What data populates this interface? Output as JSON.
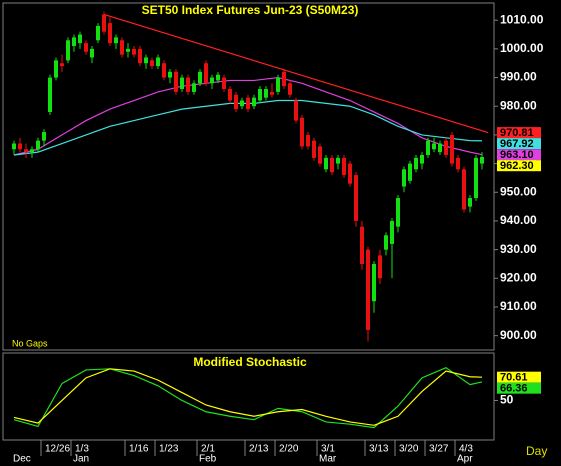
{
  "chart_data": [
    {
      "type": "candlestick",
      "title": "SET50 Index Futures Jun-23 (S50M23)",
      "annotation": "No Gaps",
      "categories": [
        null,
        null,
        null,
        null,
        null,
        "12/26",
        null,
        null,
        null,
        null,
        "1/3",
        null,
        null,
        null,
        null,
        null,
        null,
        null,
        null,
        "1/16",
        null,
        null,
        null,
        null,
        "1/23",
        null,
        null,
        null,
        null,
        null,
        null,
        "2/1",
        null,
        null,
        null,
        null,
        null,
        null,
        null,
        "2/13",
        null,
        null,
        null,
        null,
        "2/20",
        null,
        null,
        null,
        null,
        null,
        null,
        "3/1",
        null,
        null,
        null,
        null,
        null,
        null,
        null,
        "3/13",
        null,
        null,
        null,
        null,
        "3/20",
        null,
        null,
        null,
        null,
        "3/27",
        null,
        null,
        null,
        null,
        "4/3",
        null,
        null,
        null,
        null
      ],
      "months": [
        {
          "value": 0,
          "label": "Dec"
        },
        {
          "value": 10,
          "label": "Jan"
        },
        {
          "value": 31,
          "label": "Feb"
        },
        {
          "value": 51,
          "label": "Mar"
        },
        {
          "value": 74,
          "label": "Apr"
        }
      ],
      "open": [
        965,
        967,
        965,
        964,
        965,
        968,
        978,
        990,
        995,
        996,
        1001,
        1002,
        1002,
        997,
        1003,
        1012,
        1009,
        1002,
        1003,
        999,
        1000,
        1000,
        995,
        996,
        994,
        995,
        990,
        992,
        986,
        990,
        985,
        988,
        995,
        988,
        989,
        990,
        986,
        984,
        980,
        983,
        980,
        982,
        983,
        985,
        985,
        992,
        988,
        982,
        976,
        970,
        968,
        966,
        958,
        962,
        960,
        962,
        960,
        956,
        938,
        930,
        912,
        928,
        930,
        932,
        938,
        952,
        954,
        958,
        960,
        963,
        965,
        964,
        968,
        970,
        962,
        958,
        945,
        948,
        960
      ],
      "high": [
        968,
        969,
        967,
        966,
        969,
        972,
        991,
        997,
        998,
        1004,
        1005,
        1006,
        1003,
        1001,
        1009,
        1013,
        1011,
        1005,
        1004,
        1002,
        1001,
        1001,
        998,
        997,
        998,
        996,
        993,
        993,
        991,
        991,
        989,
        993,
        996,
        991,
        992,
        991,
        987,
        985,
        983,
        984,
        984,
        987,
        987,
        988,
        991,
        993,
        989,
        983,
        977,
        971,
        969,
        967,
        963,
        963,
        963,
        963,
        961,
        957,
        940,
        931,
        926,
        930,
        936,
        941,
        949,
        959,
        961,
        963,
        964,
        969,
        969,
        968,
        969,
        971,
        963,
        959,
        949,
        963,
        964
      ],
      "low": [
        963,
        964,
        962,
        962,
        964,
        966,
        977,
        989,
        992,
        995,
        999,
        1000,
        998,
        995,
        1002,
        1005,
        1001,
        1000,
        997,
        997,
        997,
        994,
        993,
        993,
        993,
        989,
        988,
        984,
        985,
        984,
        984,
        987,
        987,
        986,
        988,
        985,
        981,
        978,
        979,
        978,
        979,
        981,
        982,
        983,
        984,
        986,
        983,
        974,
        965,
        965,
        961,
        959,
        957,
        956,
        958,
        955,
        952,
        938,
        923,
        898,
        908,
        918,
        928,
        920,
        936,
        950,
        953,
        957,
        958,
        962,
        964,
        963,
        962,
        959,
        957,
        943,
        943,
        947,
        958
      ],
      "close": [
        967,
        965,
        964,
        965,
        968,
        971,
        990,
        996,
        994,
        1003,
        1004,
        1005,
        999,
        1000,
        1008,
        1006,
        1002,
        1004,
        998,
        1000,
        998,
        995,
        997,
        994,
        997,
        990,
        992,
        985,
        990,
        985,
        988,
        992,
        988,
        990,
        991,
        986,
        982,
        979,
        982,
        979,
        983,
        986,
        986,
        984,
        990,
        987,
        984,
        975,
        966,
        966,
        962,
        960,
        962,
        957,
        962,
        956,
        953,
        940,
        925,
        902,
        925,
        920,
        935,
        940,
        948,
        958,
        960,
        962,
        963,
        968,
        967,
        967,
        963,
        960,
        958,
        944,
        948,
        962,
        962.3
      ],
      "value_labels": [
        null,
        null,
        null,
        null,
        null,
        null,
        null,
        null,
        null,
        null,
        null,
        null,
        null,
        null,
        null,
        null,
        null,
        null,
        null,
        null,
        null,
        null,
        null,
        null,
        null,
        null,
        null,
        null,
        null,
        null,
        null,
        null,
        null,
        null,
        null,
        null,
        null,
        null,
        null,
        null,
        null,
        null,
        null,
        null,
        null,
        null,
        null,
        null,
        null,
        null,
        null,
        null,
        null,
        null,
        null,
        null,
        null,
        null,
        null,
        null,
        null,
        null,
        null,
        null,
        null,
        null,
        null,
        null,
        null,
        null,
        null,
        null,
        null,
        null,
        null,
        null,
        null,
        null,
        "962.30"
      ],
      "label_color": "#ffff00",
      "up_color": "#12e012",
      "down_color": "#e81010",
      "ylim": [
        895,
        1016
      ],
      "yticks": [
        {
          "value": 900,
          "label": "900.00"
        },
        {
          "value": 910,
          "label": "910.00"
        },
        {
          "value": 920,
          "label": "920.00"
        },
        {
          "value": 930,
          "label": "930.00"
        },
        {
          "value": 940,
          "label": "940.00"
        },
        {
          "value": 950,
          "label": "950.00"
        },
        {
          "value": 960,
          "label": "960.00"
        },
        {
          "value": 970,
          "label": "970.00"
        },
        {
          "value": 980,
          "label": "980.00"
        },
        {
          "value": 990,
          "label": "990.00"
        },
        {
          "value": 1000,
          "label": "1000.00"
        },
        {
          "value": 1010,
          "label": "1010.00"
        }
      ],
      "series": [
        {
          "color": "#e040e0",
          "x": [
            0,
            4,
            8,
            12,
            16,
            20,
            24,
            28,
            32,
            36,
            40,
            44,
            48,
            52,
            56,
            60,
            64,
            68,
            72,
            76,
            78
          ],
          "values": [
            963,
            965,
            970,
            975,
            979,
            982,
            985,
            987,
            988,
            989,
            989,
            990,
            988,
            985,
            982,
            978,
            974,
            969,
            966,
            964,
            963.1
          ],
          "value_labels": [
            null,
            null,
            null,
            null,
            null,
            null,
            null,
            null,
            null,
            null,
            null,
            null,
            null,
            null,
            null,
            null,
            null,
            null,
            null,
            null,
            "963.10"
          ]
        },
        {
          "color": "#40e0e0",
          "x": [
            0,
            4,
            8,
            12,
            16,
            20,
            24,
            28,
            32,
            36,
            40,
            44,
            48,
            52,
            56,
            60,
            64,
            68,
            72,
            76,
            78
          ],
          "values": [
            963,
            964,
            967,
            970,
            973,
            975,
            977,
            979,
            980,
            981,
            981,
            982,
            982,
            981,
            980,
            977,
            973,
            970,
            969,
            968,
            967.92
          ],
          "value_labels": [
            null,
            null,
            null,
            null,
            null,
            null,
            null,
            null,
            null,
            null,
            null,
            null,
            null,
            null,
            null,
            null,
            null,
            null,
            null,
            null,
            "967.92"
          ]
        },
        {
          "color": "#ff2020",
          "x": [
            15,
            79
          ],
          "values": [
            1012,
            970.81
          ],
          "value_labels": [
            null,
            "970.81"
          ]
        }
      ]
    },
    {
      "type": "line",
      "title": "Modified Stochastic",
      "xlabel": "Day",
      "ylim": [
        15,
        92
      ],
      "yticks": [
        50
      ],
      "series": [
        {
          "color": "#20e020",
          "x": [
            0,
            4,
            8,
            12,
            16,
            20,
            24,
            28,
            32,
            36,
            40,
            44,
            48,
            52,
            56,
            60,
            64,
            68,
            72,
            76,
            78
          ],
          "values": [
            33,
            27,
            65,
            77,
            78,
            72,
            63,
            50,
            40,
            36,
            33,
            43,
            40,
            31,
            29,
            26,
            45,
            70,
            79,
            64,
            66.36
          ],
          "value_labels": [
            null,
            null,
            null,
            null,
            null,
            null,
            null,
            null,
            null,
            null,
            null,
            null,
            null,
            null,
            null,
            null,
            null,
            null,
            null,
            null,
            null
          ]
        },
        {
          "color": "#ffff00",
          "x": [
            0,
            4,
            8,
            12,
            16,
            20,
            24,
            28,
            32,
            36,
            40,
            44,
            48,
            52,
            56,
            60,
            64,
            68,
            72,
            76,
            78
          ],
          "values": [
            35,
            30,
            50,
            70,
            78,
            76,
            68,
            57,
            46,
            40,
            36,
            40,
            42,
            36,
            31,
            28,
            36,
            58,
            76,
            71,
            70.61
          ],
          "value_labels": [
            null,
            null,
            null,
            null,
            null,
            null,
            null,
            null,
            null,
            null,
            null,
            null,
            null,
            null,
            null,
            null,
            null,
            null,
            null,
            null,
            null
          ]
        }
      ]
    }
  ]
}
